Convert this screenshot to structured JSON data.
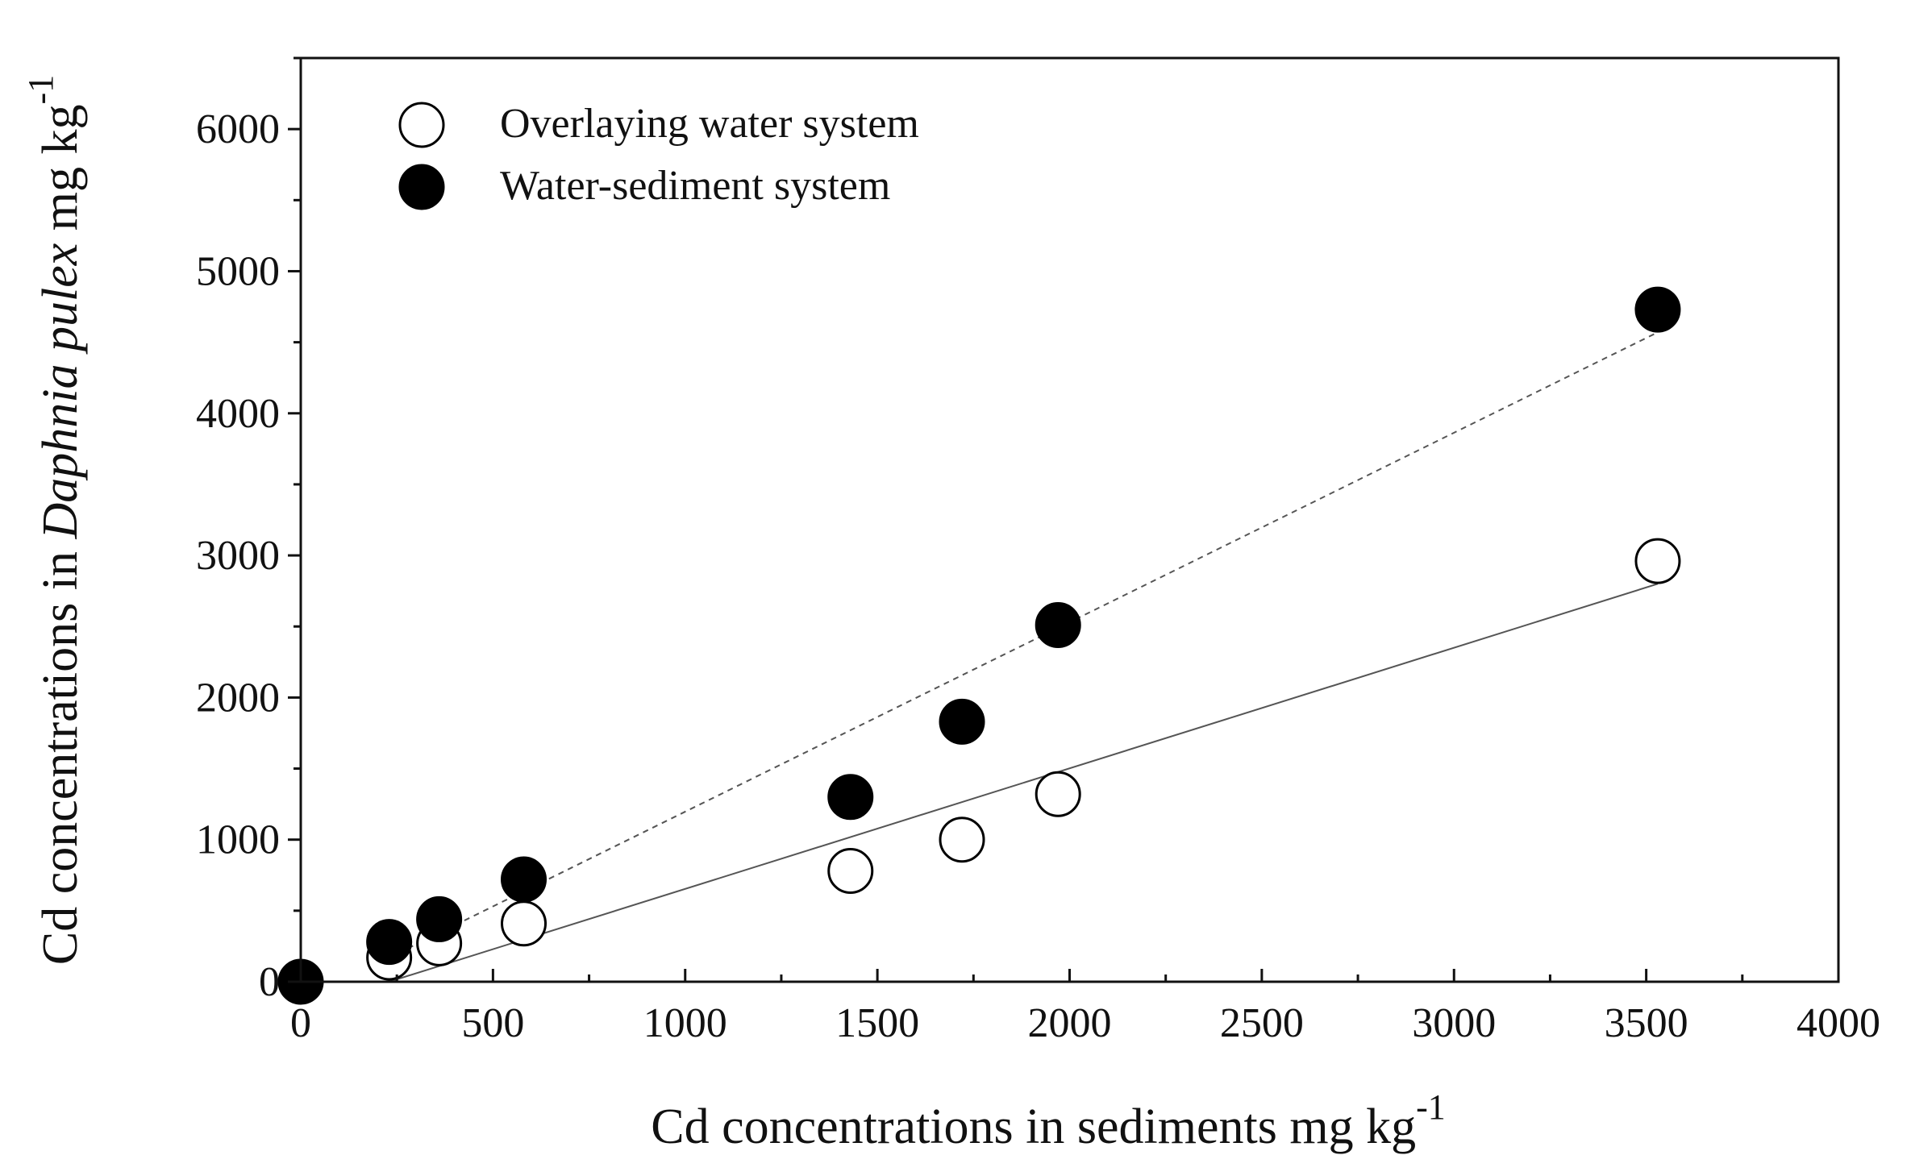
{
  "chart_data": {
    "type": "scatter",
    "xlabel": "Cd concentrations in sediments mg kg",
    "xlabel_sup": "-1",
    "ylabel_prefix": "Cd concentrations in ",
    "ylabel_species": "Daphnia pulex",
    "ylabel_suffix": " mg kg",
    "ylabel_sup": "-1",
    "xlim": [
      0,
      4000
    ],
    "ylim": [
      0,
      6500
    ],
    "x_ticks": [
      0,
      500,
      1000,
      1500,
      2000,
      2500,
      3000,
      3500,
      4000
    ],
    "y_ticks": [
      0,
      1000,
      2000,
      3000,
      4000,
      5000,
      6000
    ],
    "x_tick_labels": [
      "0",
      "500",
      "1000",
      "1500",
      "2000",
      "2500",
      "3000",
      "3500",
      "4000"
    ],
    "y_tick_labels": [
      "0",
      "1000",
      "2000",
      "3000",
      "4000",
      "5000",
      "6000"
    ],
    "legend_position": "top-left",
    "grid": false,
    "series": [
      {
        "name": "Overlaying water system",
        "marker": "open-circle",
        "x": [
          230,
          360,
          580,
          1430,
          1720,
          1970,
          3530
        ],
        "y": [
          170,
          270,
          410,
          780,
          1000,
          1320,
          2960
        ],
        "fit": {
          "style": "solid",
          "x": [
            230,
            3530
          ],
          "y": [
            0,
            2800
          ]
        }
      },
      {
        "name": "Water-sediment system",
        "marker": "filled-circle",
        "x": [
          0,
          230,
          360,
          580,
          1430,
          1720,
          1970,
          3530
        ],
        "y": [
          0,
          280,
          440,
          720,
          1300,
          1830,
          2510,
          4730
        ],
        "fit": {
          "style": "dashed",
          "x": [
            230,
            3530
          ],
          "y": [
            170,
            4570
          ]
        }
      }
    ]
  },
  "colors": {
    "axis": "#111111",
    "open_marker_fill": "#ffffff",
    "filled_marker": "#000000",
    "fit_line": "#555555"
  }
}
